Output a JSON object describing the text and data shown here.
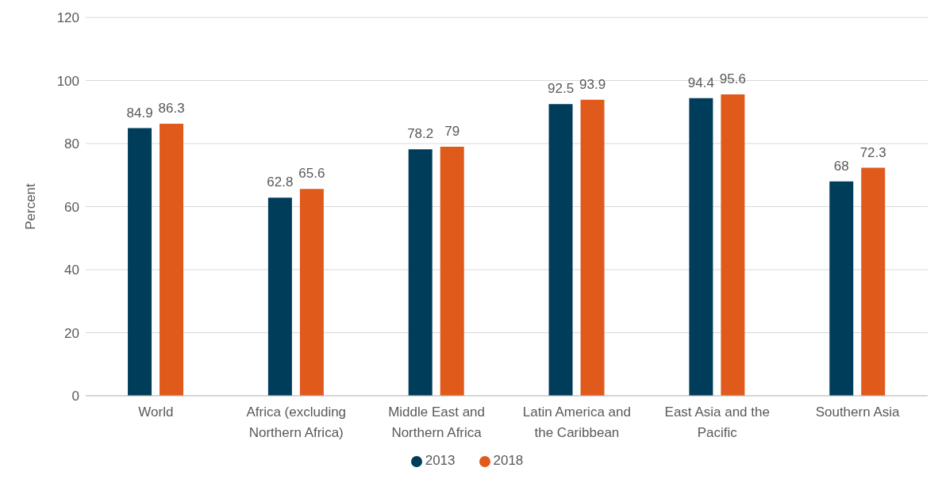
{
  "chart_data": {
    "type": "bar",
    "ylabel": "Percent",
    "categories": [
      "World",
      "Africa (excluding Northern Africa)",
      "Middle East and Northern Africa",
      "Latin America and the Caribbean",
      "East Asia and the Pacific",
      "Southern Asia"
    ],
    "series": [
      {
        "name": "2013",
        "color": "#003d5b",
        "values": [
          84.9,
          62.8,
          78.2,
          92.5,
          94.4,
          68
        ]
      },
      {
        "name": "2018",
        "color": "#e05a1c",
        "values": [
          86.3,
          65.6,
          79,
          93.9,
          95.6,
          72.3
        ]
      }
    ],
    "ylim": [
      0,
      120
    ],
    "yticks": [
      0,
      20,
      40,
      60,
      80,
      100,
      120
    ],
    "grid": "y",
    "legend": "bottom",
    "data_labels": true
  }
}
